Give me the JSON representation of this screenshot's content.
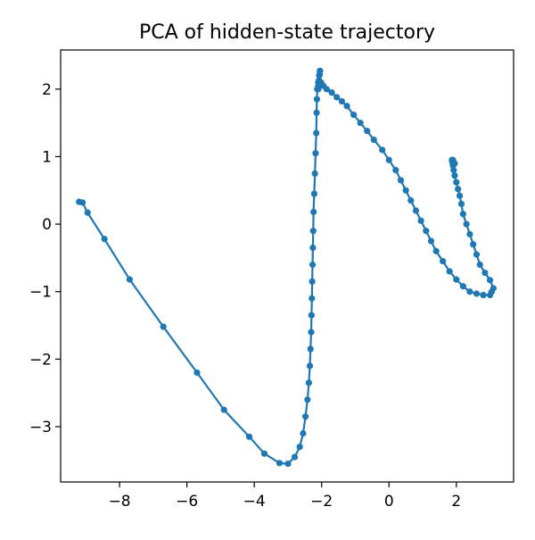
{
  "chart_data": {
    "type": "line",
    "title": "PCA of hidden-state trajectory",
    "xlabel": "",
    "ylabel": "",
    "xlim": [
      -9.75,
      3.7
    ],
    "ylim": [
      -3.82,
      2.58
    ],
    "xticks": [
      -8,
      -6,
      -4,
      -2,
      0,
      2
    ],
    "yticks": [
      -3,
      -2,
      -1,
      0,
      1,
      2
    ],
    "xtick_labels": [
      "−8",
      "−6",
      "−4",
      "−2",
      "0",
      "2"
    ],
    "ytick_labels": [
      "−3",
      "−2",
      "−1",
      "0",
      "1",
      "2"
    ],
    "grid": false,
    "legend": "none",
    "color": "#1f77b4",
    "marker": "circle",
    "series": [
      {
        "x": [
          -9.2,
          -9.1,
          -8.95,
          -8.45,
          -7.7,
          -6.7,
          -5.7,
          -4.9,
          -4.15,
          -3.7,
          -3.25,
          -3.0,
          -2.8,
          -2.65,
          -2.55,
          -2.48,
          -2.42,
          -2.38,
          -2.35,
          -2.33,
          -2.31,
          -2.3,
          -2.29,
          -2.28,
          -2.27,
          -2.26,
          -2.25,
          -2.24,
          -2.22,
          -2.2,
          -2.18,
          -2.16,
          -2.15,
          -2.14,
          -2.13,
          -2.1,
          -2.07,
          -2.05,
          -2.05,
          -2.06,
          -2.08,
          -2.1,
          -2.1,
          -2.07,
          -2.02,
          -1.95,
          -1.85,
          -1.7,
          -1.55,
          -1.4,
          -1.25,
          -1.05,
          -0.85,
          -0.65,
          -0.45,
          -0.2,
          0.0,
          0.2,
          0.35,
          0.5,
          0.65,
          0.8,
          0.95,
          1.1,
          1.25,
          1.4,
          1.6,
          1.8,
          2.0,
          2.2,
          2.4,
          2.6,
          2.8,
          3.0,
          3.05,
          3.1,
          3.0,
          2.85,
          2.7,
          2.6,
          2.5,
          2.4,
          2.3,
          2.2,
          2.15,
          2.1,
          2.05,
          2.0,
          1.95,
          1.92,
          1.9,
          1.88,
          1.87,
          1.9,
          1.95
        ],
        "y": [
          0.33,
          0.32,
          0.17,
          -0.22,
          -0.82,
          -1.52,
          -2.2,
          -2.75,
          -3.15,
          -3.4,
          -3.54,
          -3.55,
          -3.45,
          -3.3,
          -3.1,
          -2.85,
          -2.6,
          -2.35,
          -2.1,
          -1.85,
          -1.6,
          -1.35,
          -1.1,
          -0.85,
          -0.6,
          -0.35,
          -0.1,
          0.18,
          0.45,
          0.75,
          1.05,
          1.35,
          1.65,
          1.85,
          2.0,
          2.1,
          2.2,
          2.27,
          2.27,
          2.22,
          2.13,
          2.05,
          2.0,
          2.08,
          2.1,
          2.05,
          2.0,
          1.95,
          1.88,
          1.82,
          1.75,
          1.62,
          1.5,
          1.38,
          1.25,
          1.1,
          0.95,
          0.8,
          0.65,
          0.5,
          0.35,
          0.2,
          0.05,
          -0.1,
          -0.25,
          -0.4,
          -0.55,
          -0.7,
          -0.82,
          -0.92,
          -1.0,
          -1.03,
          -1.05,
          -1.05,
          -1.0,
          -0.95,
          -0.83,
          -0.72,
          -0.6,
          -0.45,
          -0.3,
          -0.15,
          0.0,
          0.15,
          0.3,
          0.42,
          0.52,
          0.62,
          0.72,
          0.8,
          0.87,
          0.92,
          0.95,
          0.95,
          0.9
        ]
      }
    ]
  }
}
